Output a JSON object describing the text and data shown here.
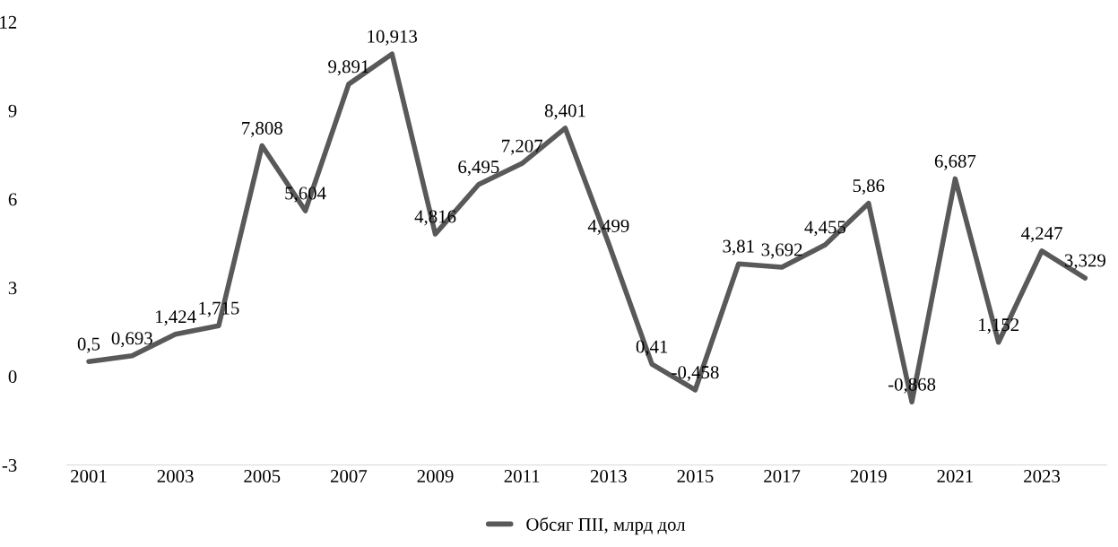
{
  "chart_data": {
    "type": "line",
    "x": [
      2001,
      2002,
      2003,
      2004,
      2005,
      2006,
      2007,
      2008,
      2009,
      2010,
      2011,
      2012,
      2013,
      2014,
      2015,
      2016,
      2017,
      2018,
      2019,
      2020,
      2021,
      2022,
      2023,
      2024
    ],
    "series": [
      {
        "name": "Обсяг ПІІ, млрд дол",
        "color": "#595959",
        "values": [
          0.5,
          0.693,
          1.424,
          1.715,
          7.808,
          5.604,
          9.891,
          10.913,
          4.816,
          6.495,
          7.207,
          8.401,
          4.499,
          0.41,
          -0.458,
          3.81,
          3.692,
          4.455,
          5.86,
          -0.868,
          6.687,
          1.152,
          4.247,
          3.329
        ],
        "value_labels": [
          "0,5",
          "0,693",
          "1,424",
          "1,715",
          "7,808",
          "5,604",
          "9,891",
          "10,913",
          "4,816",
          "6,495",
          "7,207",
          "8,401",
          "4,499",
          "0,41",
          "-0,458",
          "3,81",
          "3,692",
          "4,455",
          "5,86",
          "-0,868",
          "6,687",
          "1,152",
          "4,247",
          "3,329"
        ]
      }
    ],
    "xlim": [
      2000.5,
      2024.5
    ],
    "xticks": [
      2001,
      2003,
      2005,
      2007,
      2009,
      2011,
      2013,
      2015,
      2017,
      2019,
      2021,
      2023
    ],
    "ylim": [
      -3,
      12
    ],
    "yticks": [
      {
        "value": -3,
        "label": "-3"
      },
      0,
      3,
      6,
      9,
      12
    ],
    "grid": false,
    "legend": "bottom",
    "marker": "none",
    "line_style": "solid"
  }
}
